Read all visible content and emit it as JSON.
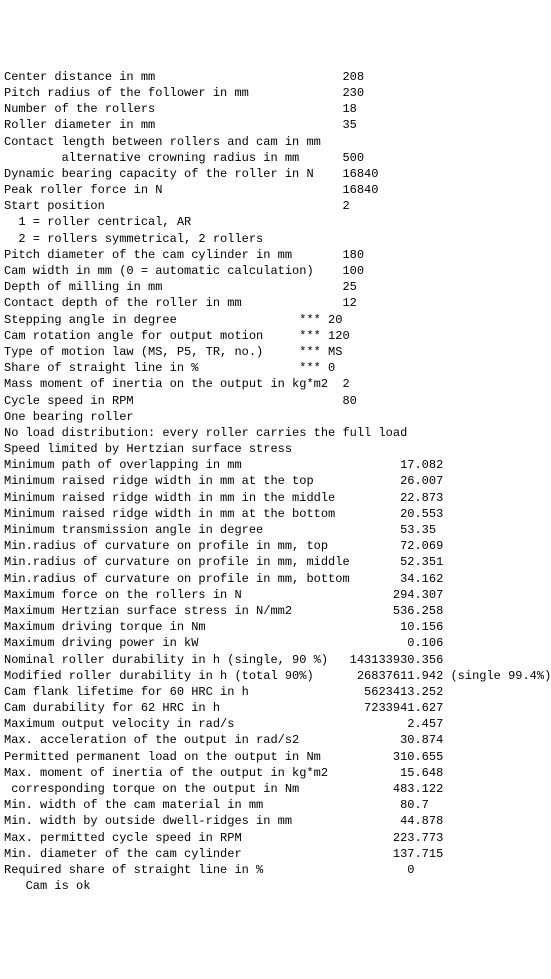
{
  "inputs": [
    {
      "label": "Center distance in mm",
      "stars": false,
      "value": "208",
      "col": 48
    },
    {
      "label": "Pitch radius of the follower in mm",
      "stars": false,
      "value": "230",
      "col": 48
    },
    {
      "label": "Number of the rollers",
      "stars": false,
      "value": "18",
      "col": 48
    },
    {
      "label": "Roller diameter in mm",
      "stars": false,
      "value": "35",
      "col": 48
    },
    {
      "label": "Contact length between rollers and cam in mm",
      "stars": false,
      "value": "",
      "col": 48
    },
    {
      "label": "        alternative crowning radius in mm",
      "stars": false,
      "value": "500",
      "col": 48
    },
    {
      "label": "Dynamic bearing capacity of the roller in N",
      "stars": false,
      "value": "16840",
      "col": 48
    },
    {
      "label": "Peak roller force in N",
      "stars": false,
      "value": "16840",
      "col": 48
    },
    {
      "label": "Start position",
      "stars": false,
      "value": "2",
      "col": 48
    },
    {
      "label": "  1 = roller centrical, AR",
      "stars": false,
      "value": "",
      "col": 48
    },
    {
      "label": "  2 = rollers symmetrical, 2 rollers",
      "stars": false,
      "value": "",
      "col": 48
    },
    {
      "label": "Pitch diameter of the cam cylinder in mm",
      "stars": false,
      "value": "180",
      "col": 48
    },
    {
      "label": "Cam width in mm (0 = automatic calculation)",
      "stars": false,
      "value": "100",
      "col": 48
    },
    {
      "label": "Depth of milling in mm",
      "stars": false,
      "value": "25",
      "col": 48
    },
    {
      "label": "Contact depth of the roller in mm",
      "stars": false,
      "value": "12",
      "col": 48
    },
    {
      "label": "Stepping angle in degree",
      "stars": true,
      "value": "20",
      "col": 48
    },
    {
      "label": "Cam rotation angle for output motion",
      "stars": true,
      "value": "120",
      "col": 48
    },
    {
      "label": "Type of motion law (MS, P5, TR, no.)",
      "stars": true,
      "value": "MS",
      "col": 48
    },
    {
      "label": "Share of straight line in %",
      "stars": true,
      "value": "0",
      "col": 48
    },
    {
      "label": "Mass moment of inertia on the output in kg*m2",
      "stars": false,
      "value": "2",
      "col": 48
    },
    {
      "label": "Cycle speed in RPM",
      "stars": false,
      "value": "80",
      "col": 48
    }
  ],
  "notes": [
    "",
    "One bearing roller",
    "No load distribution: every roller carries the full load",
    "Speed limited by Hertzian surface stress",
    ""
  ],
  "outputs": [
    {
      "label": "Minimum path of overlapping in mm",
      "value": "17.082",
      "col": 56
    },
    {
      "label": "Minimum raised ridge width in mm at the top",
      "value": "26.007",
      "col": 56
    },
    {
      "label": "Minimum raised ridge width in mm in the middle",
      "value": "22.873",
      "col": 56
    },
    {
      "label": "Minimum raised ridge width in mm at the bottom",
      "value": "20.553",
      "col": 56
    },
    {
      "label": "Minimum transmission angle in degree",
      "value": "53.35",
      "col": 56
    },
    {
      "label": "Min.radius of curvature on profile in mm, top",
      "value": "72.069",
      "col": 56
    },
    {
      "label": "Min.radius of curvature on profile in mm, middle",
      "value": "52.351",
      "col": 56
    },
    {
      "label": "Min.radius of curvature on profile in mm, bottom",
      "value": "34.162",
      "col": 56
    },
    {
      "label": "Maximum force on the rollers in N",
      "value": "294.307",
      "col": 55
    },
    {
      "label": "Maximum Hertzian surface stress in N/mm2",
      "value": "536.258",
      "col": 55
    },
    {
      "label": "Maximum driving torque in Nm",
      "value": "10.156",
      "col": 56
    },
    {
      "label": "Maximum driving power in kW",
      "value": "0.106",
      "col": 57
    },
    {
      "label": "Nominal roller durability in h (single, 90 %)",
      "value": "143133930.356",
      "col": 49
    },
    {
      "label": "Modified roller durability in h (total 90%)",
      "value": "26837611.942 (single 99.4%)",
      "col": 50
    },
    {
      "label": "Cam flank lifetime for 60 HRC in h",
      "value": "5623413.252",
      "col": 51
    },
    {
      "label": "Cam durability for 62 HRC in h",
      "value": "7233941.627",
      "col": 51
    },
    {
      "label": "Maximum output velocity in rad/s",
      "value": "2.457",
      "col": 57
    },
    {
      "label": "Max. acceleration of the output in rad/s2",
      "value": "30.874",
      "col": 56
    },
    {
      "label": "Permitted permanent load on the output in Nm",
      "value": "310.655",
      "col": 55
    },
    {
      "label": "Max. moment of inertia of the output in kg*m2",
      "value": "15.648",
      "col": 56
    },
    {
      "label": " corresponding torque on the output in Nm",
      "value": "483.122",
      "col": 55
    },
    {
      "label": "Min. width of the cam material in mm",
      "value": "80.7",
      "col": 56
    },
    {
      "label": "Min. width by outside dwell-ridges in mm",
      "value": "44.878",
      "col": 56
    },
    {
      "label": "Max. permitted cycle speed in RPM",
      "value": "223.773",
      "col": 55
    },
    {
      "label": "Min. diameter of the cam cylinder",
      "value": "137.715",
      "col": 55
    },
    {
      "label": "Required share of straight line in %",
      "value": "0",
      "col": 57
    }
  ],
  "footer": [
    "",
    "   Cam is ok"
  ]
}
